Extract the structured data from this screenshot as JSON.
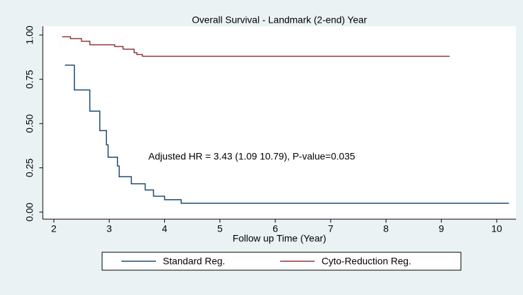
{
  "chart_data": {
    "type": "line",
    "title": "Overall Survival - Landmark (2-end) Year",
    "xlabel": "Follow up Time (Year)",
    "annotation": "Adjusted HR = 3.43 (1.09  10.79), P-value=0.035",
    "drawstyle": "steps-post",
    "xlim": [
      1.8,
      10.35
    ],
    "ylim": [
      -0.04,
      1.05
    ],
    "xticks": [
      2,
      3,
      4,
      5,
      6,
      7,
      8,
      9,
      10
    ],
    "yticks": [
      {
        "value": 0,
        "label": "0.00"
      },
      {
        "value": 0.25,
        "label": "0.25"
      },
      {
        "value": 0.5,
        "label": "0.50"
      },
      {
        "value": 0.75,
        "label": "0.75"
      },
      {
        "value": 1,
        "label": "1.00"
      }
    ],
    "grid": false,
    "legend": "bottom",
    "series": [
      {
        "name": "Standard Reg.",
        "color": "#1a476f",
        "x": [
          2.2,
          2.37,
          2.65,
          2.83,
          2.95,
          2.98,
          3.15,
          3.18,
          3.4,
          3.65,
          3.8,
          4.0,
          4.3,
          10.22
        ],
        "values": [
          0.83,
          0.69,
          0.57,
          0.46,
          0.38,
          0.31,
          0.26,
          0.2,
          0.16,
          0.125,
          0.09,
          0.07,
          0.05,
          0.05
        ]
      },
      {
        "name": "Cyto-Reduction Reg.",
        "color": "#90353b",
        "x": [
          2.15,
          2.3,
          2.5,
          2.65,
          3.1,
          3.25,
          3.45,
          3.5,
          3.6,
          9.15
        ],
        "values": [
          0.99,
          0.98,
          0.965,
          0.945,
          0.935,
          0.92,
          0.9,
          0.89,
          0.88,
          0.88
        ]
      }
    ]
  }
}
